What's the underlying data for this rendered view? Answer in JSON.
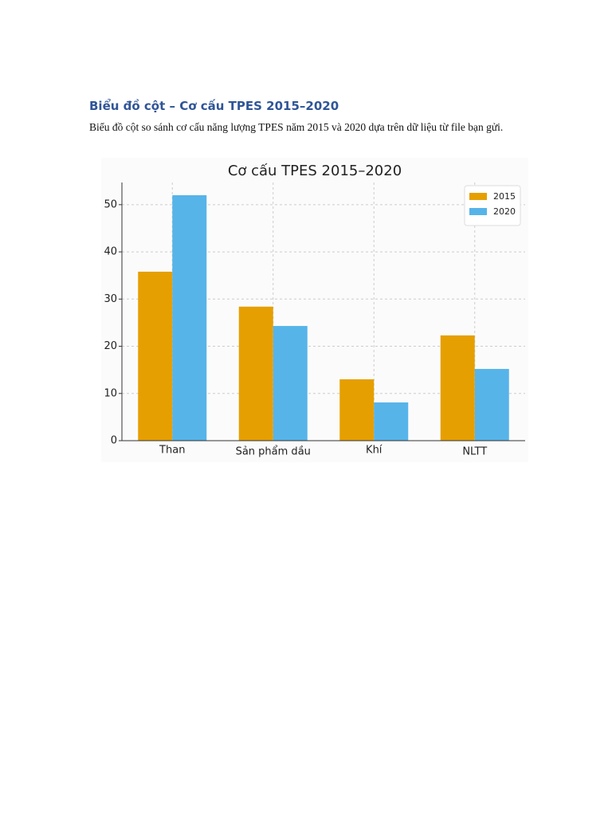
{
  "document": {
    "title": "Biểu đồ cột – Cơ cấu TPES 2015–2020",
    "paragraph": "Biểu đồ cột so sánh cơ cấu năng lượng TPES năm 2015 và 2020 dựa trên dữ liệu từ file bạn gửi."
  },
  "chart_data": {
    "type": "bar",
    "title": "Cơ cấu TPES 2015–2020",
    "categories": [
      "Than",
      "Sản phẩm dầu",
      "Khí",
      "NLTT"
    ],
    "series": [
      {
        "name": "2015",
        "color": "#e69f00",
        "values": [
          35.8,
          28.4,
          13.0,
          22.3
        ]
      },
      {
        "name": "2020",
        "color": "#56b4e9",
        "values": [
          52.0,
          24.3,
          8.1,
          15.2
        ]
      }
    ],
    "ylim": [
      0,
      54.7
    ],
    "yticks": [
      0,
      10,
      20,
      30,
      40,
      50
    ],
    "grid": true,
    "legend": "upper-right"
  }
}
